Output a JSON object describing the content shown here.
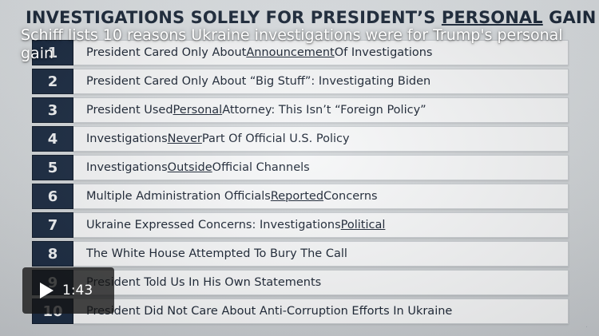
{
  "video": {
    "caption": "Schiff lists 10 reasons Ukraine investigations were for Trump's personal gain",
    "duration": "1:43"
  },
  "slide": {
    "title_parts": [
      {
        "text": "INVESTIGATIONS SOLELY FOR PRESIDENT’S ",
        "underline": false
      },
      {
        "text": "PERSONAL",
        "underline": true
      },
      {
        "text": " GAIN",
        "underline": false
      }
    ],
    "items": [
      {
        "num": "1",
        "parts": [
          {
            "t": "President Cared Only About ",
            "u": false
          },
          {
            "t": "Announcement",
            "u": true
          },
          {
            "t": " Of Investigations",
            "u": false
          }
        ]
      },
      {
        "num": "2",
        "parts": [
          {
            "t": "President Cared Only About “Big Stuff”: Investigating Biden",
            "u": false
          }
        ]
      },
      {
        "num": "3",
        "parts": [
          {
            "t": "President Used ",
            "u": false
          },
          {
            "t": "Personal",
            "u": true
          },
          {
            "t": " Attorney: This Isn’t “Foreign Policy”",
            "u": false
          }
        ]
      },
      {
        "num": "4",
        "parts": [
          {
            "t": "Investigations ",
            "u": false
          },
          {
            "t": "Never",
            "u": true
          },
          {
            "t": " Part Of Official U.S. Policy",
            "u": false
          }
        ]
      },
      {
        "num": "5",
        "parts": [
          {
            "t": "Investigations ",
            "u": false
          },
          {
            "t": "Outside",
            "u": true
          },
          {
            "t": " Official Channels",
            "u": false
          }
        ]
      },
      {
        "num": "6",
        "parts": [
          {
            "t": "Multiple Administration Officials ",
            "u": false
          },
          {
            "t": "Reported",
            "u": true
          },
          {
            "t": " Concerns",
            "u": false
          }
        ]
      },
      {
        "num": "7",
        "parts": [
          {
            "t": "Ukraine Expressed Concerns: Investigations ",
            "u": false
          },
          {
            "t": "Political",
            "u": true
          }
        ]
      },
      {
        "num": "8",
        "parts": [
          {
            "t": "The White House Attempted To Bury The Call",
            "u": false
          }
        ]
      },
      {
        "num": "9",
        "parts": [
          {
            "t": "President Told Us In His Own Statements",
            "u": false
          }
        ]
      },
      {
        "num": "10",
        "parts": [
          {
            "t": "President Did Not Care About Anti-Corruption Efforts In Ukraine",
            "u": false
          }
        ]
      }
    ]
  },
  "icons": {
    "play": "play-icon"
  }
}
